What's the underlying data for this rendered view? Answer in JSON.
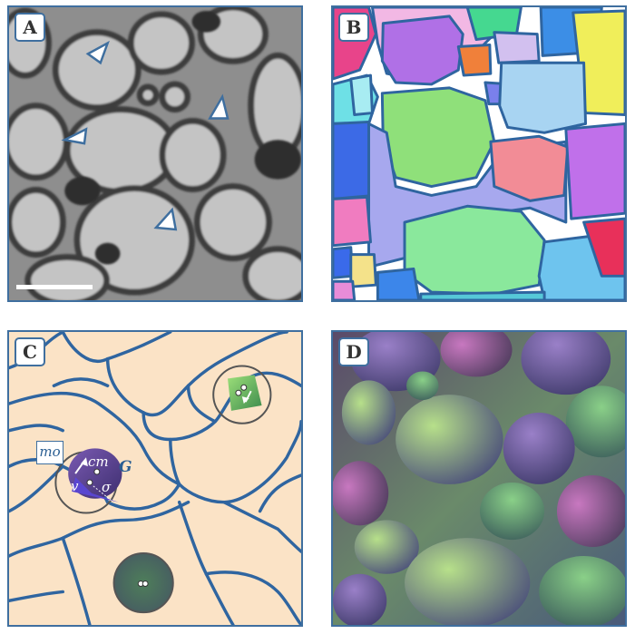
{
  "figure": {
    "panels": [
      {
        "id": "A",
        "label": "A",
        "kind": "electron-micrograph"
      },
      {
        "id": "B",
        "label": "B",
        "kind": "colored-segmentation"
      },
      {
        "id": "C",
        "label": "C",
        "kind": "schematic-boundaries"
      },
      {
        "id": "D",
        "label": "D",
        "kind": "embedding-visualization"
      }
    ],
    "annotations": {
      "mo": "mo",
      "G": "G",
      "cm": "cm",
      "v": "v",
      "sigma": "σ"
    },
    "colors": {
      "frame": "#3f6f9f",
      "boundary": "#2f65a0",
      "schematic_bg": "#fbe3c6",
      "arrow_marker": "#3f6f9f"
    }
  }
}
